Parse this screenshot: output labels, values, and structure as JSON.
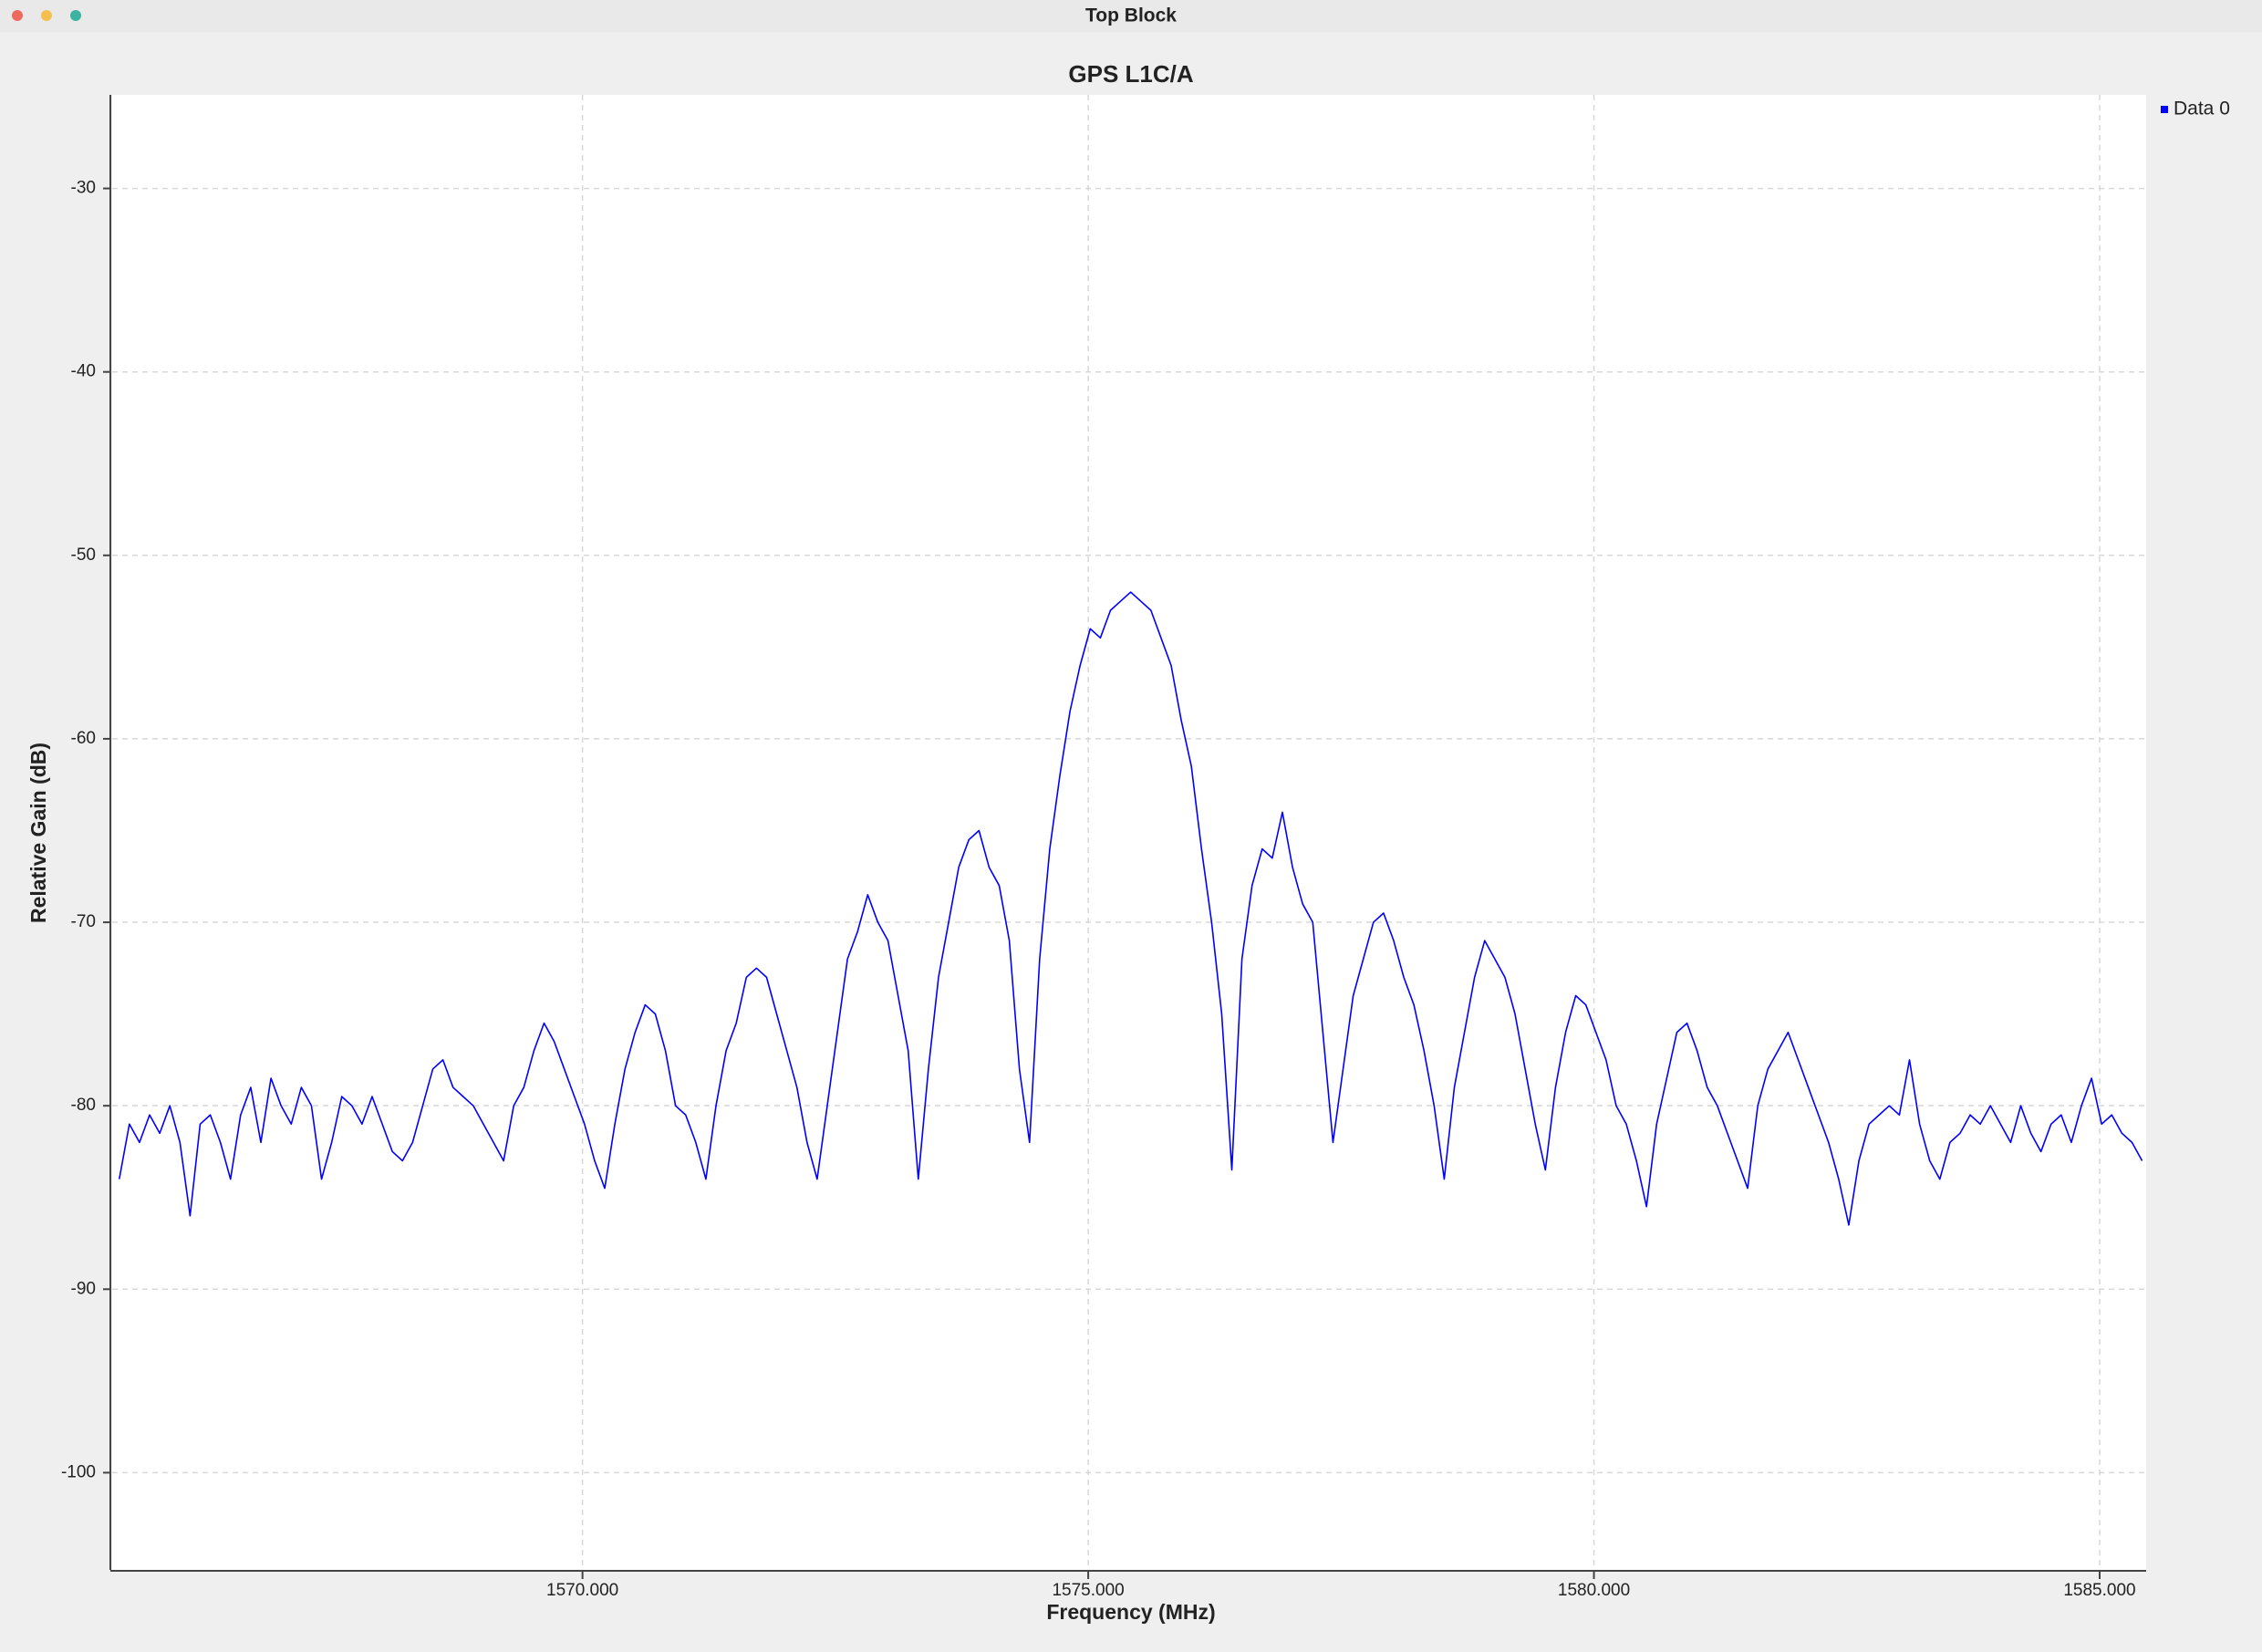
{
  "window_title": "Top Block",
  "chart_data": {
    "type": "line",
    "title": "GPS L1C/A",
    "x_label": "Frequency (MHz)",
    "y_label": "Relative Gain (dB)",
    "xlim": [
      1565.35,
      1585.46
    ],
    "ylim": [
      -105.3,
      -24.9
    ],
    "xticks": [
      {
        "value": 1570,
        "label": "1570.000"
      },
      {
        "value": 1575,
        "label": "1575.000"
      },
      {
        "value": 1580,
        "label": "1580.000"
      },
      {
        "value": 1585,
        "label": "1585.000"
      }
    ],
    "yticks": [
      -30,
      -40,
      -50,
      -60,
      -70,
      -80,
      -90,
      -100
    ],
    "grid": true,
    "legend": "top-right",
    "x": [
      1565.42,
      1565.52,
      1565.62,
      1565.72,
      1565.82,
      1565.92,
      1566.02,
      1566.12,
      1566.22,
      1566.32,
      1566.42,
      1566.52,
      1566.62,
      1566.72,
      1566.82,
      1566.92,
      1567.02,
      1567.12,
      1567.22,
      1567.32,
      1567.42,
      1567.52,
      1567.62,
      1567.72,
      1567.82,
      1567.92,
      1568.02,
      1568.12,
      1568.22,
      1568.32,
      1568.42,
      1568.52,
      1568.62,
      1568.72,
      1568.82,
      1568.92,
      1569.02,
      1569.12,
      1569.22,
      1569.32,
      1569.42,
      1569.52,
      1569.62,
      1569.72,
      1569.82,
      1569.92,
      1570.02,
      1570.12,
      1570.22,
      1570.32,
      1570.42,
      1570.52,
      1570.62,
      1570.72,
      1570.82,
      1570.92,
      1571.02,
      1571.12,
      1571.22,
      1571.32,
      1571.42,
      1571.52,
      1571.62,
      1571.72,
      1571.82,
      1571.92,
      1572.02,
      1572.12,
      1572.22,
      1572.32,
      1572.42,
      1572.52,
      1572.62,
      1572.72,
      1572.82,
      1572.92,
      1573.02,
      1573.12,
      1573.22,
      1573.32,
      1573.42,
      1573.52,
      1573.62,
      1573.72,
      1573.82,
      1573.92,
      1574.02,
      1574.12,
      1574.22,
      1574.32,
      1574.42,
      1574.52,
      1574.62,
      1574.72,
      1574.82,
      1574.92,
      1575.02,
      1575.12,
      1575.22,
      1575.32,
      1575.42,
      1575.52,
      1575.62,
      1575.72,
      1575.82,
      1575.92,
      1576.02,
      1576.12,
      1576.22,
      1576.32,
      1576.42,
      1576.52,
      1576.62,
      1576.72,
      1576.82,
      1576.92,
      1577.02,
      1577.12,
      1577.22,
      1577.32,
      1577.42,
      1577.52,
      1577.62,
      1577.72,
      1577.82,
      1577.92,
      1578.02,
      1578.12,
      1578.22,
      1578.32,
      1578.42,
      1578.52,
      1578.62,
      1578.72,
      1578.82,
      1578.92,
      1579.02,
      1579.12,
      1579.22,
      1579.32,
      1579.42,
      1579.52,
      1579.62,
      1579.72,
      1579.82,
      1579.92,
      1580.02,
      1580.12,
      1580.22,
      1580.32,
      1580.42,
      1580.52,
      1580.62,
      1580.72,
      1580.82,
      1580.92,
      1581.02,
      1581.12,
      1581.22,
      1581.32,
      1581.42,
      1581.52,
      1581.62,
      1581.72,
      1581.82,
      1581.92,
      1582.02,
      1582.12,
      1582.22,
      1582.32,
      1582.42,
      1582.52,
      1582.62,
      1582.72,
      1582.82,
      1582.92,
      1583.02,
      1583.12,
      1583.22,
      1583.32,
      1583.42,
      1583.52,
      1583.62,
      1583.72,
      1583.82,
      1583.92,
      1584.02,
      1584.12,
      1584.22,
      1584.32,
      1584.42,
      1584.52,
      1584.62,
      1584.72,
      1584.82,
      1584.92,
      1585.02,
      1585.12,
      1585.22,
      1585.32,
      1585.42
    ],
    "series": [
      {
        "name": "Data 0",
        "color": "#0000ff",
        "values": [
          -84,
          -81,
          -82,
          -80.5,
          -81.5,
          -80,
          -82,
          -86,
          -81,
          -80.5,
          -82,
          -84,
          -80.5,
          -79,
          -82,
          -78.5,
          -80,
          -81,
          -79,
          -80,
          -84,
          -82,
          -79.5,
          -80,
          -81,
          -79.5,
          -81,
          -82.5,
          -83,
          -82,
          -80,
          -78,
          -77.5,
          -79,
          -79.5,
          -80,
          -81,
          -82,
          -83,
          -80,
          -79,
          -77,
          -75.5,
          -76.5,
          -78,
          -79.5,
          -81,
          -83,
          -84.5,
          -81,
          -78,
          -76,
          -74.5,
          -75,
          -77,
          -80,
          -80.5,
          -82,
          -84,
          -80,
          -77,
          -75.5,
          -73,
          -72.5,
          -73,
          -75,
          -77,
          -79,
          -82,
          -84,
          -80,
          -76,
          -72,
          -70.5,
          -68.5,
          -70,
          -71,
          -74,
          -77,
          -84,
          -78,
          -73,
          -70,
          -67,
          -65.5,
          -65,
          -67,
          -68,
          -71,
          -78,
          -82,
          -72,
          -66,
          -62,
          -58.5,
          -56,
          -54,
          -54.5,
          -53,
          -52.5,
          -52,
          -52.5,
          -53,
          -54.5,
          -56,
          -59,
          -61.5,
          -66,
          -70,
          -75,
          -83.5,
          -72,
          -68,
          -66,
          -66.5,
          -64,
          -67,
          -69,
          -70,
          -76,
          -82,
          -78,
          -74,
          -72,
          -70,
          -69.5,
          -71,
          -73,
          -74.5,
          -77,
          -80,
          -84,
          -79,
          -76,
          -73,
          -71,
          -72,
          -73,
          -75,
          -78,
          -81,
          -83.5,
          -79,
          -76,
          -74,
          -74.5,
          -76,
          -77.5,
          -80,
          -81,
          -83,
          -85.5,
          -81,
          -78.5,
          -76,
          -75.5,
          -77,
          -79,
          -80,
          -81.5,
          -83,
          -84.5,
          -80,
          -78,
          -77,
          -76,
          -77.5,
          -79,
          -80.5,
          -82,
          -84,
          -86.5,
          -83,
          -81,
          -80.5,
          -80,
          -80.5,
          -77.5,
          -81,
          -83,
          -84,
          -82,
          -81.5,
          -80.5,
          -81,
          -80,
          -81,
          -82,
          -80,
          -81.5,
          -82.5,
          -81,
          -80.5,
          -82,
          -80,
          -78.5,
          -81,
          -80.5,
          -81.5,
          -82,
          -83
        ]
      }
    ]
  }
}
